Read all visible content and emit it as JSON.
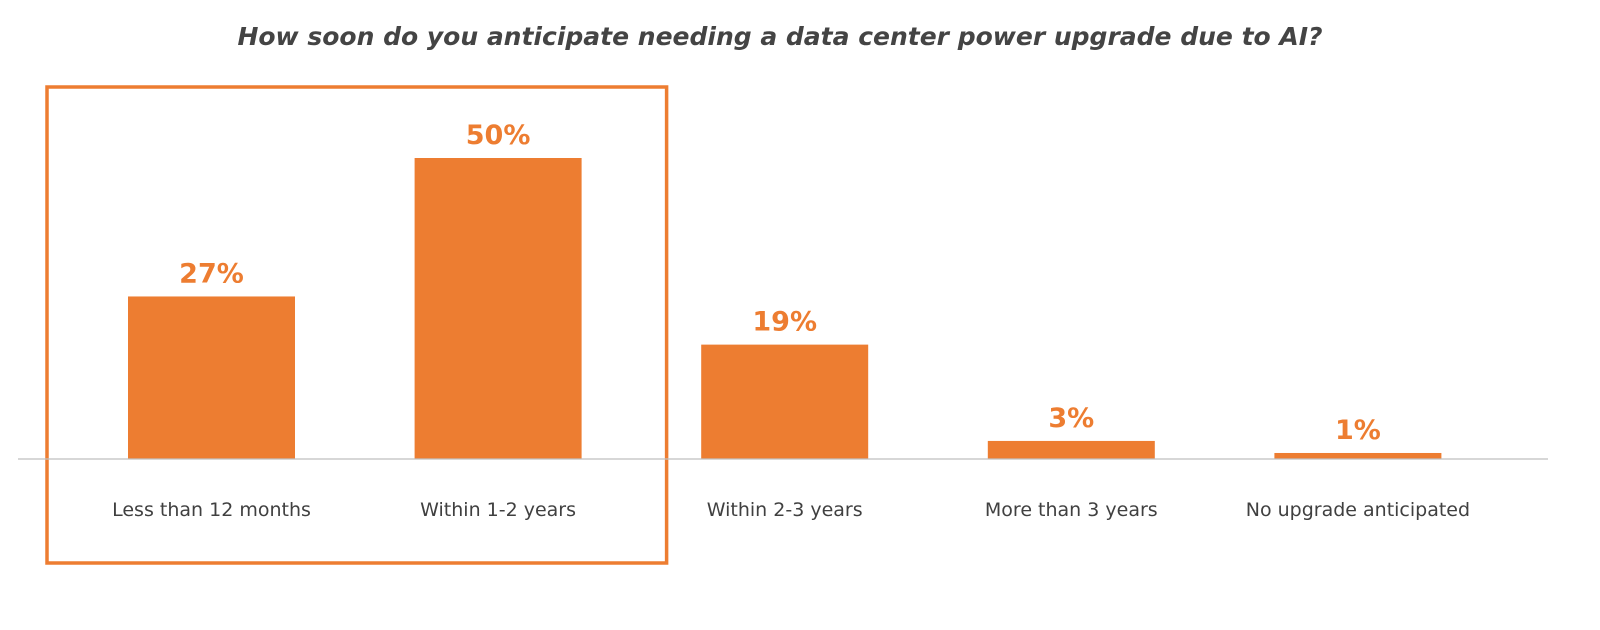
{
  "chart_data": {
    "type": "bar",
    "title": "How soon do you anticipate needing a data center power upgrade due to AI?",
    "categories": [
      "Less than 12 months",
      "Within 1-2 years",
      "Within 2-3 years",
      "More than 3 years",
      "No upgrade anticipated"
    ],
    "values": [
      27,
      50,
      19,
      3,
      1
    ],
    "data_labels": [
      "27%",
      "50%",
      "19%",
      "3%",
      "1%"
    ],
    "unit": "%",
    "ylim": [
      0,
      50
    ],
    "grid": false,
    "highlighted_categories": [
      "Less than 12 months",
      "Within 1-2 years"
    ],
    "colors": {
      "bar": "#ED7D31",
      "label": "#ED7D31",
      "highlight_box": "#ED7D31",
      "axis": "#BFBFBF",
      "title": "#444444",
      "category_text": "#404040"
    }
  }
}
